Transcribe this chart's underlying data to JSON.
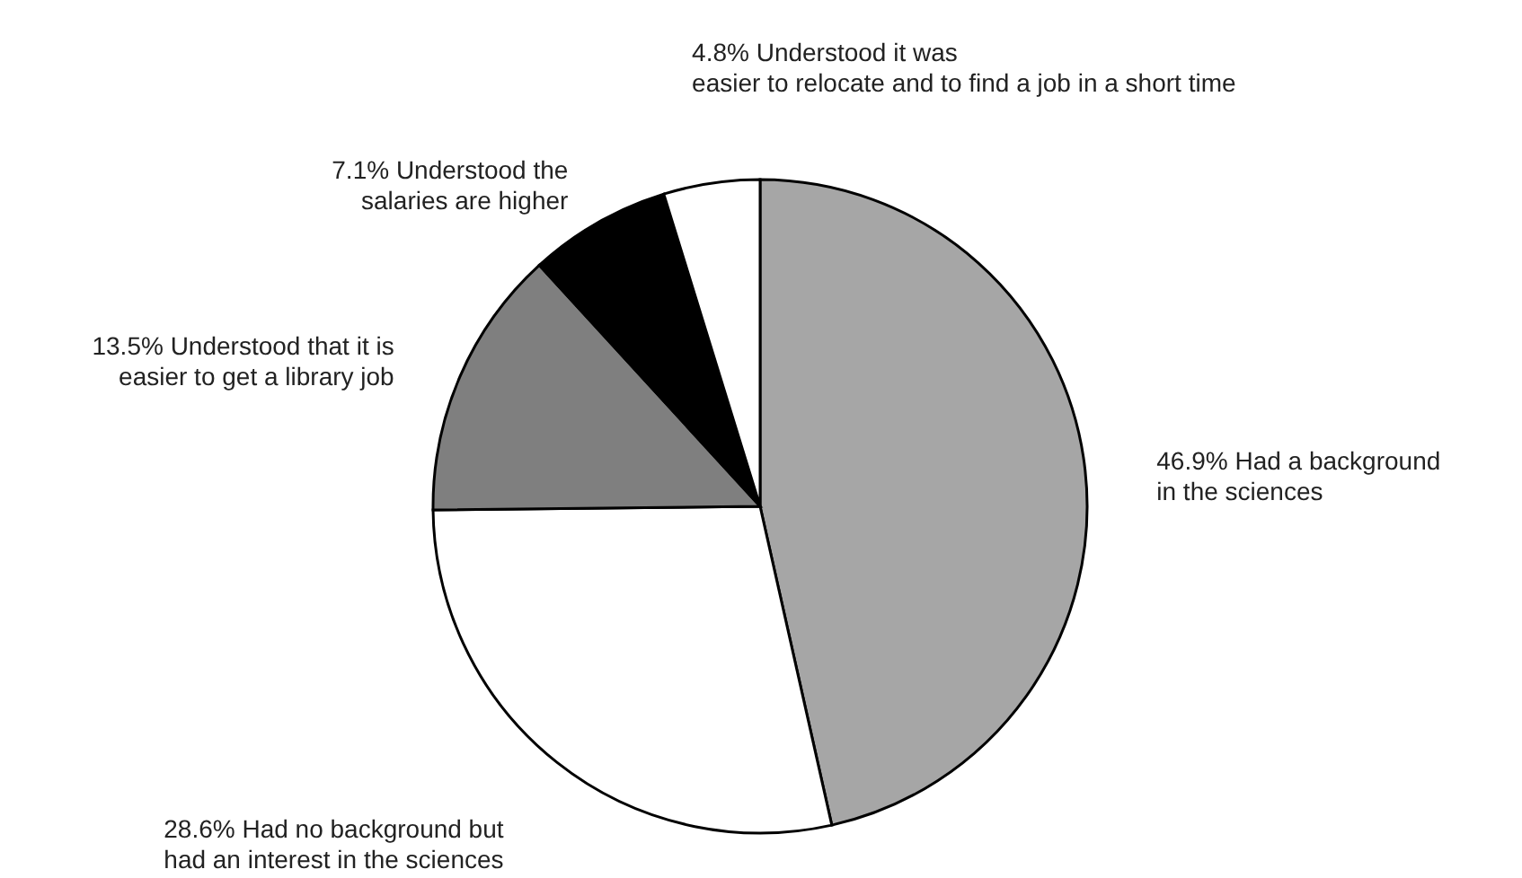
{
  "chart_data": {
    "type": "pie",
    "categories": [
      "46.9% Had a background in the sciences",
      "28.6% Had no background but had an interest in the sciences",
      "13.5% Understood that it is easier to get a library job",
      "7.1% Understood the salaries are higher",
      "4.8% Understood it was easier to relocate and to find a job in a short time"
    ],
    "values": [
      46.9,
      28.6,
      13.5,
      7.1,
      4.8
    ],
    "colors": [
      "#a6a6a6",
      "#ffffff",
      "#7f7f7f",
      "#000000",
      "#ffffff"
    ]
  }
}
